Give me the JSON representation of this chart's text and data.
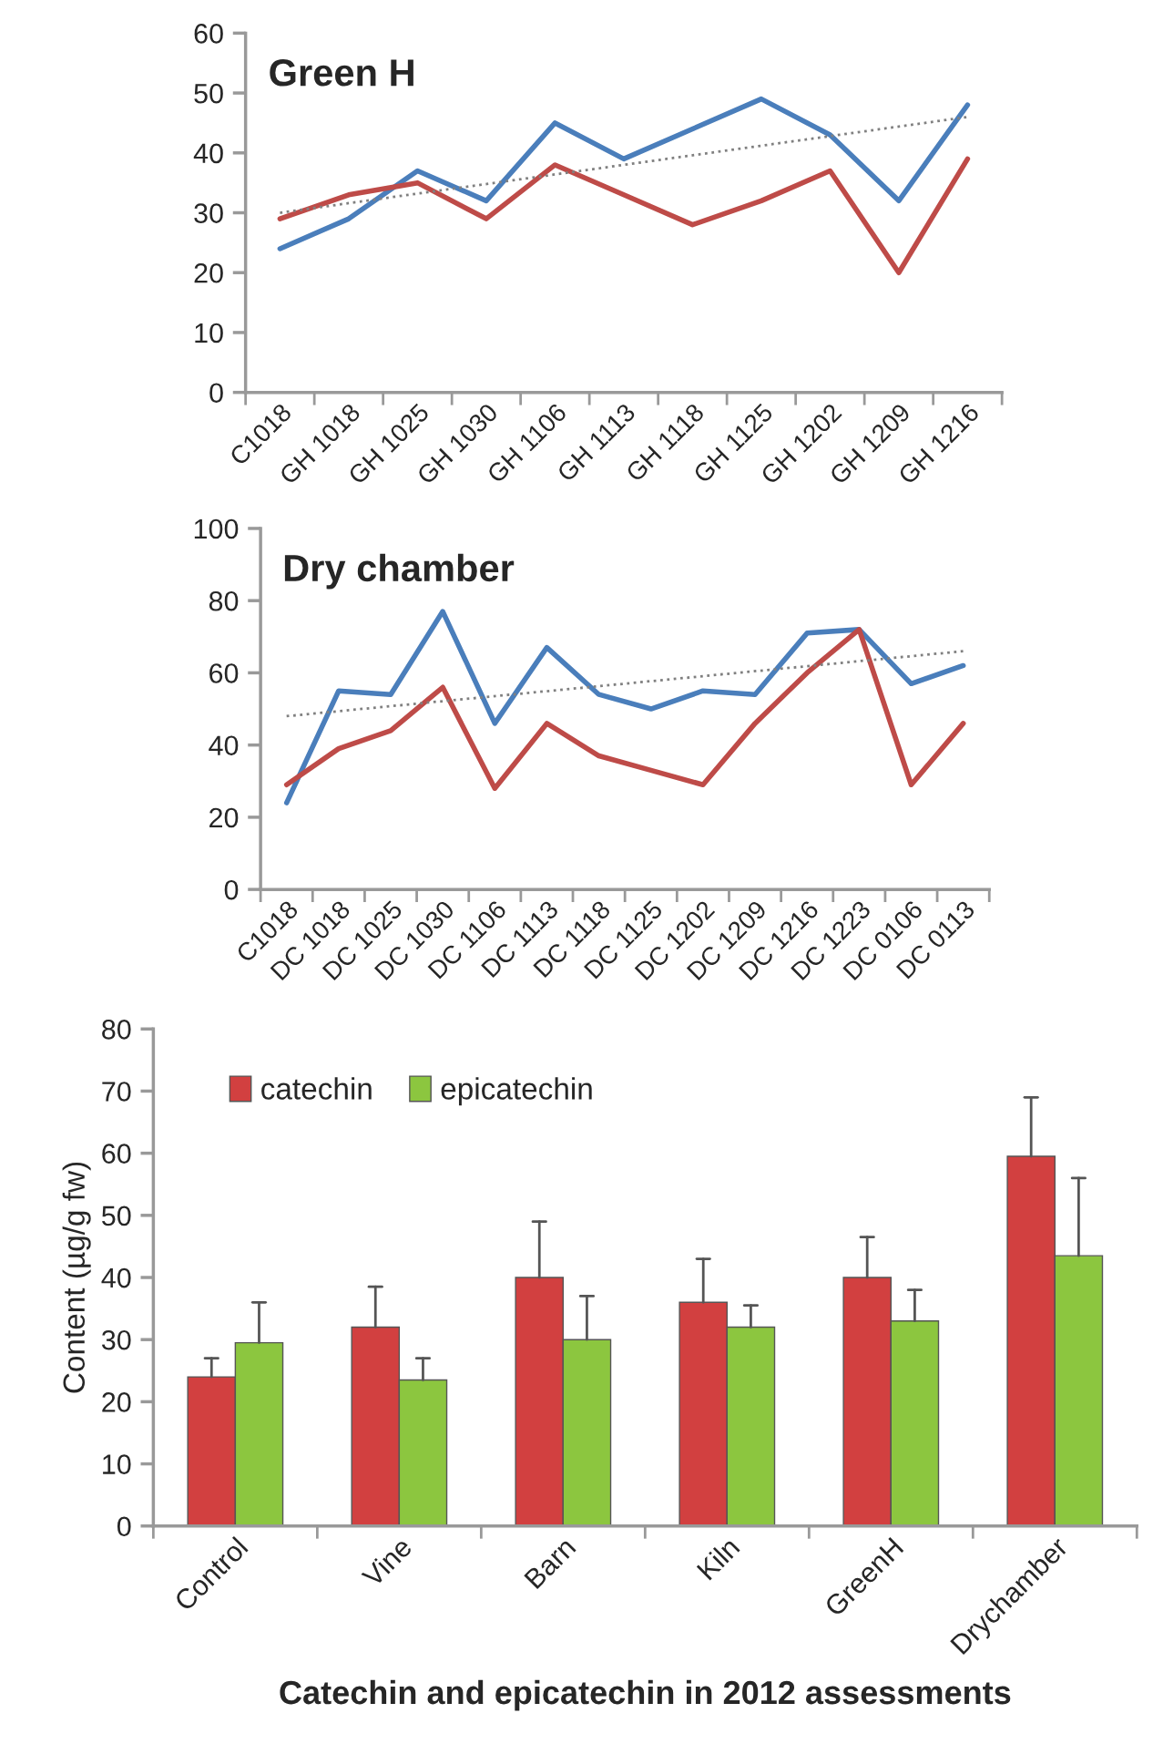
{
  "chart_data": [
    {
      "type": "line",
      "title": "Green H",
      "categories": [
        "C1018",
        "GH 1018",
        "GH 1025",
        "GH 1030",
        "GH 1106",
        "GH 1113",
        "GH 1118",
        "GH 1125",
        "GH 1202",
        "GH 1209",
        "GH 1216"
      ],
      "ylim": [
        0,
        60
      ],
      "yticks": [
        0,
        10,
        20,
        30,
        40,
        50,
        60
      ],
      "grid": false,
      "marker": "none",
      "series": [
        {
          "color": "#4a7ebb",
          "values": [
            24,
            29,
            37,
            32,
            45,
            39,
            44,
            49,
            43,
            32,
            48
          ]
        },
        {
          "color": "#be4b48",
          "values": [
            29,
            33,
            35,
            29,
            38,
            33,
            28,
            32,
            37,
            20,
            39
          ]
        },
        {
          "color": "#808080",
          "line_style": "dotted",
          "values": [
            30,
            null,
            null,
            null,
            null,
            null,
            null,
            null,
            null,
            null,
            46
          ]
        }
      ]
    },
    {
      "type": "line",
      "title": "Dry chamber",
      "categories": [
        "C1018",
        "DC 1018",
        "DC 1025",
        "DC 1030",
        "DC 1106",
        "DC 1113",
        "DC 1118",
        "DC 1125",
        "DC 1202",
        "DC 1209",
        "DC 1216",
        "DC 1223",
        "DC 0106",
        "DC 0113"
      ],
      "ylim": [
        0,
        100
      ],
      "yticks": [
        0,
        20,
        40,
        60,
        80,
        100
      ],
      "grid": false,
      "marker": "none",
      "series": [
        {
          "color": "#4a7ebb",
          "values": [
            24,
            55,
            54,
            77,
            46,
            67,
            54,
            50,
            55,
            54,
            71,
            72,
            57,
            62
          ]
        },
        {
          "color": "#be4b48",
          "values": [
            29,
            39,
            44,
            56,
            28,
            46,
            37,
            33,
            29,
            46,
            60,
            72,
            29,
            46
          ]
        },
        {
          "color": "#808080",
          "line_style": "dotted",
          "values": [
            48,
            null,
            null,
            null,
            null,
            null,
            null,
            null,
            null,
            null,
            null,
            null,
            null,
            66
          ]
        }
      ]
    },
    {
      "type": "bar",
      "title": "Catechin and epicatechin in 2012 assessments",
      "ylabel": "Content (µg/g fw)",
      "categories": [
        "Control",
        "Vine",
        "Barn",
        "Kiln",
        "GreenH",
        "Drychamber"
      ],
      "ylim": [
        0,
        80
      ],
      "yticks": [
        0,
        10,
        20,
        30,
        40,
        50,
        60,
        70,
        80
      ],
      "grid": false,
      "legend": "top left",
      "series": [
        {
          "name": "catechin",
          "color": "#d24040",
          "values": [
            24,
            32,
            40,
            36,
            40,
            59.5
          ],
          "errors": [
            [
              24,
              27
            ],
            [
              32,
              38.5
            ],
            [
              40,
              49
            ],
            [
              36,
              43
            ],
            [
              40,
              46.5
            ],
            [
              59.5,
              69
            ]
          ]
        },
        {
          "name": "epicatechin",
          "color": "#8cc63f",
          "values": [
            29.5,
            23.5,
            30,
            32,
            33,
            43.5
          ],
          "errors": [
            [
              29.5,
              36
            ],
            [
              23.5,
              27
            ],
            [
              30,
              37
            ],
            [
              32,
              35.5
            ],
            [
              33,
              38
            ],
            [
              43.5,
              56
            ]
          ]
        }
      ]
    }
  ]
}
